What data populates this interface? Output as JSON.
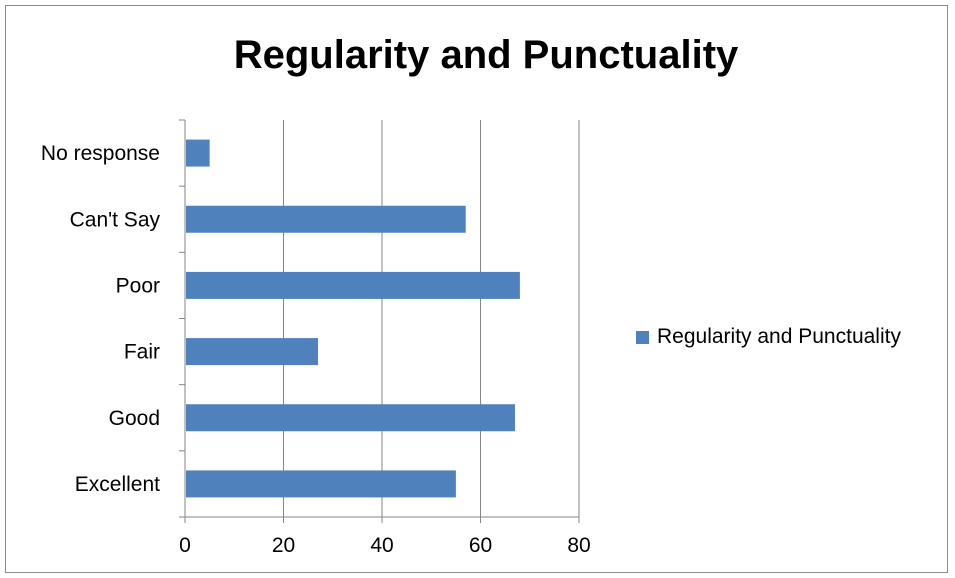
{
  "chart_data": {
    "type": "bar",
    "orientation": "horizontal",
    "title": "Regularity and Punctuality",
    "categories": [
      "Excellent",
      "Good",
      "Fair",
      "Poor",
      "Can't Say",
      "No response"
    ],
    "series": [
      {
        "name": "Regularity and Punctuality",
        "values": [
          55,
          67,
          27,
          68,
          57,
          5
        ],
        "color": "#4f81bd"
      }
    ],
    "xlim": [
      0,
      80
    ],
    "xticks": [
      "0",
      "20",
      "40",
      "60",
      "80"
    ],
    "grid": true,
    "legend": "right"
  }
}
